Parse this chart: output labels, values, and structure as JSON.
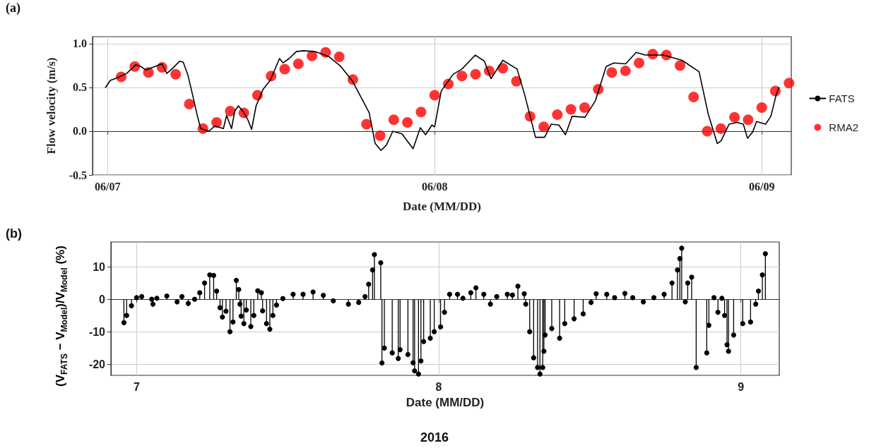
{
  "chart_data": [
    {
      "type": "line",
      "xlabel": "Date (MM/DD)",
      "ylabel": "Flow velocity (m/s)",
      "annotations": [
        "(a)"
      ],
      "xlim": [
        "2016-06-06T22:54",
        "2016-06-09T02:10"
      ],
      "xticks": [
        {
          "value": "2016-06-07",
          "label": "06/07"
        },
        {
          "value": "2016-06-08",
          "label": "06/08"
        },
        {
          "value": "2016-06-09",
          "label": "06/09"
        }
      ],
      "ylim": [
        -0.5,
        1.08
      ],
      "yticks": [
        {
          "value": -0.5,
          "label": "-0.5"
        },
        {
          "value": 0,
          "label": "0.0"
        },
        0.5,
        {
          "value": 1,
          "label": "1.0"
        }
      ],
      "grid": true,
      "legend": "right",
      "series": [
        {
          "name": "FATS",
          "type": "line",
          "color": "#000000",
          "marker": "none",
          "line_style": "solid",
          "x": [
            "2016-06-06T23:51",
            "2016-06-07T00:12",
            "2016-06-07T00:43",
            "2016-06-07T01:24",
            "2016-06-07T02:05",
            "2016-06-07T02:27",
            "2016-06-07T02:47",
            "2016-06-07T03:29",
            "2016-06-07T03:59",
            "2016-06-07T04:21",
            "2016-06-07T04:51",
            "2016-06-07T05:17",
            "2016-06-07T05:33",
            "2016-06-07T05:54",
            "2016-06-07T06:14",
            "2016-06-07T06:35",
            "2016-06-07T06:50",
            "2016-06-07T07:26",
            "2016-06-07T07:52",
            "2016-06-07T08:30",
            "2016-06-07T08:44",
            "2016-06-07T09:06",
            "2016-06-07T09:20",
            "2016-06-07T09:36",
            "2016-06-07T09:58",
            "2016-06-07T10:18",
            "2016-06-07T10:34",
            "2016-06-07T10:54",
            "2016-06-07T11:25",
            "2016-06-07T11:56",
            "2016-06-07T12:37",
            "2016-06-07T12:53",
            "2016-06-07T13:19",
            "2016-06-07T13:51",
            "2016-06-07T14:21",
            "2016-06-07T15:13",
            "2016-06-07T16:16",
            "2016-06-07T17:07",
            "2016-06-07T17:59",
            "2016-06-07T19:12",
            "2016-06-07T19:38",
            "2016-06-07T20:04",
            "2016-06-07T20:27",
            "2016-06-07T20:56",
            "2016-06-07T21:36",
            "2016-06-07T22:25",
            "2016-06-07T22:57",
            "2016-06-07T23:20",
            "2016-06-07T23:48",
            "2016-06-08T00:00",
            "2016-06-08T00:29",
            "2016-06-08T01:21",
            "2016-06-08T02:00",
            "2016-06-08T02:59",
            "2016-06-08T03:39",
            "2016-06-08T04:08",
            "2016-06-08T05:00",
            "2016-06-08T06:03",
            "2016-06-08T06:37",
            "2016-06-08T07:24",
            "2016-06-08T08:04",
            "2016-06-08T08:33",
            "2016-06-08T09:07",
            "2016-06-08T09:36",
            "2016-06-08T10:05",
            "2016-06-08T11:02",
            "2016-06-08T11:48",
            "2016-06-08T12:35",
            "2016-06-08T13:09",
            "2016-06-08T14:01",
            "2016-06-08T14:47",
            "2016-06-08T15:27",
            "2016-06-08T16:48",
            "2016-06-08T18:09",
            "2016-06-08T19:24",
            "2016-06-08T20:04",
            "2016-06-08T20:44",
            "2016-06-08T21:01",
            "2016-06-08T21:36",
            "2016-06-08T22:11",
            "2016-06-08T22:39",
            "2016-06-08T22:57",
            "2016-06-08T23:20",
            "2016-06-08T23:37",
            "2016-06-09T00:17",
            "2016-06-09T00:40",
            "2016-06-09T01:03",
            "2016-06-09T01:15"
          ],
          "values": [
            0.5,
            0.58,
            0.61,
            0.66,
            0.76,
            0.74,
            0.7,
            0.74,
            0.77,
            0.66,
            0.73,
            0.8,
            0.79,
            0.64,
            0.42,
            0.18,
            0.03,
            0.0,
            0.06,
            0.03,
            0.18,
            0.03,
            0.23,
            0.29,
            0.22,
            0.13,
            0.02,
            0.29,
            0.48,
            0.58,
            0.83,
            0.78,
            0.83,
            0.91,
            0.92,
            0.91,
            0.85,
            0.74,
            0.57,
            0.21,
            -0.14,
            -0.22,
            -0.16,
            0.0,
            -0.03,
            -0.2,
            0.04,
            -0.04,
            0.07,
            0.05,
            0.46,
            0.65,
            0.71,
            0.87,
            0.8,
            0.6,
            0.81,
            0.71,
            0.41,
            -0.07,
            -0.07,
            0.08,
            0.07,
            -0.04,
            0.17,
            0.16,
            0.35,
            0.74,
            0.78,
            0.77,
            0.9,
            0.87,
            0.87,
            0.81,
            0.68,
            0.2,
            -0.14,
            -0.11,
            0.08,
            0.1,
            0.08,
            -0.08,
            -0.01,
            0.11,
            0.08,
            0.17,
            0.41,
            0.5
          ]
        },
        {
          "name": "RMA2",
          "type": "scatter",
          "color": "#ff0000",
          "marker": "circle",
          "x": [
            "2016-06-07T01:00",
            "2016-06-07T02:00",
            "2016-06-07T03:00",
            "2016-06-07T04:00",
            "2016-06-07T05:00",
            "2016-06-07T06:00",
            "2016-06-07T07:00",
            "2016-06-07T08:00",
            "2016-06-07T09:00",
            "2016-06-07T10:00",
            "2016-06-07T11:00",
            "2016-06-07T12:00",
            "2016-06-07T13:00",
            "2016-06-07T14:00",
            "2016-06-07T15:00",
            "2016-06-07T16:00",
            "2016-06-07T17:00",
            "2016-06-07T18:00",
            "2016-06-07T19:00",
            "2016-06-07T20:00",
            "2016-06-07T21:00",
            "2016-06-07T22:00",
            "2016-06-07T23:00",
            "2016-06-08T00:00",
            "2016-06-08T01:00",
            "2016-06-08T02:00",
            "2016-06-08T03:00",
            "2016-06-08T04:00",
            "2016-06-08T05:00",
            "2016-06-08T06:00",
            "2016-06-08T07:00",
            "2016-06-08T08:00",
            "2016-06-08T09:00",
            "2016-06-08T10:00",
            "2016-06-08T11:00",
            "2016-06-08T12:00",
            "2016-06-08T13:00",
            "2016-06-08T14:00",
            "2016-06-08T15:00",
            "2016-06-08T16:00",
            "2016-06-08T17:00",
            "2016-06-08T18:00",
            "2016-06-08T19:00",
            "2016-06-08T20:00",
            "2016-06-08T21:00",
            "2016-06-08T22:00",
            "2016-06-08T23:00",
            "2016-06-09T00:00",
            "2016-06-09T01:00",
            "2016-06-09T02:00"
          ],
          "values": [
            0.62,
            0.74,
            0.67,
            0.73,
            0.65,
            0.31,
            0.03,
            0.1,
            0.23,
            0.21,
            0.41,
            0.63,
            0.71,
            0.77,
            0.86,
            0.9,
            0.85,
            0.59,
            0.08,
            -0.05,
            0.13,
            0.1,
            0.22,
            0.41,
            0.54,
            0.63,
            0.65,
            0.69,
            0.72,
            0.57,
            0.17,
            0.05,
            0.19,
            0.25,
            0.27,
            0.48,
            0.67,
            0.69,
            0.78,
            0.88,
            0.87,
            0.75,
            0.39,
            0.0,
            0.03,
            0.16,
            0.13,
            0.27,
            0.46,
            0.55
          ]
        }
      ]
    },
    {
      "type": "lollipop",
      "xlabel": "Date (MM/DD)",
      "ylabel": "(V$_{FATS}$ − V$_{Model}$)/V$_{Model}$ (%)",
      "annotations": [
        "(b)",
        "2016"
      ],
      "xlim": [
        6.915,
        9.127
      ],
      "xticks": [
        7,
        8,
        9
      ],
      "ylim": [
        -23.4,
        17.6
      ],
      "yticks": [
        -20,
        -10,
        0,
        10
      ],
      "grid": true,
      "legend": false,
      "marker": "circle",
      "series": [
        {
          "color": "#000000",
          "x": [
            6.958,
            6.967,
            6.983,
            7.0,
            7.017,
            7.05,
            7.054,
            7.067,
            7.1,
            7.134,
            7.15,
            7.171,
            7.192,
            7.209,
            7.225,
            7.242,
            7.255,
            7.265,
            7.276,
            7.284,
            7.296,
            7.309,
            7.319,
            7.33,
            7.338,
            7.342,
            7.346,
            7.355,
            7.363,
            7.378,
            7.388,
            7.401,
            7.413,
            7.417,
            7.43,
            7.441,
            7.451,
            7.463,
            7.484,
            7.518,
            7.551,
            7.584,
            7.618,
            7.651,
            7.701,
            7.735,
            7.756,
            7.768,
            7.781,
            7.787,
            7.808,
            7.812,
            7.82,
            7.846,
            7.866,
            7.872,
            7.898,
            7.915,
            7.92,
            7.933,
            7.941,
            7.95,
            7.972,
            7.985,
            8.006,
            8.019,
            8.036,
            8.062,
            8.08,
            8.106,
            8.123,
            8.149,
            8.171,
            8.192,
            8.227,
            8.244,
            8.262,
            8.283,
            8.288,
            8.301,
            8.314,
            8.327,
            8.335,
            8.344,
            8.348,
            8.352,
            8.374,
            8.4,
            8.417,
            8.448,
            8.478,
            8.504,
            8.521,
            8.556,
            8.582,
            8.616,
            8.642,
            8.677,
            8.712,
            8.746,
            8.772,
            8.79,
            8.798,
            8.804,
            8.816,
            8.824,
            8.837,
            8.852,
            8.887,
            8.894,
            8.911,
            8.924,
            8.937,
            8.946,
            8.954,
            8.959,
            8.976,
            9.006,
            9.032,
            9.049,
            9.058,
            9.071,
            9.081
          ],
          "values": [
            -7.2,
            -5,
            -2,
            0.5,
            0.8,
            0,
            -1.5,
            0.3,
            1.0,
            -0.8,
            0.8,
            -1.3,
            0,
            2,
            5,
            7.5,
            7.3,
            2.5,
            -2.6,
            -5.5,
            -3.7,
            -10,
            -7,
            5.8,
            3,
            -1.5,
            -5.2,
            -7.5,
            -3.3,
            -8.4,
            -5,
            2.6,
            2,
            -3.6,
            -7.5,
            -9.2,
            -5,
            -1.8,
            0.2,
            1.5,
            1.5,
            2.2,
            1.2,
            -0.5,
            -1.5,
            -1.0,
            0.8,
            4.6,
            9,
            13.7,
            11.2,
            -19.6,
            -15,
            -16.5,
            -18.2,
            -15.5,
            -17,
            -19.5,
            -22,
            -23,
            -19,
            -13,
            -12,
            -10,
            -8.5,
            -4,
            1.5,
            1.5,
            0.3,
            2,
            3.5,
            1.5,
            -1.5,
            0.8,
            1.5,
            1.3,
            4,
            1.7,
            -1.5,
            -10,
            -18,
            -21,
            -23,
            -21,
            -16,
            -11,
            -9,
            -12,
            -7.5,
            -6,
            -4.5,
            -1,
            1.7,
            1.5,
            0.5,
            1.8,
            0.5,
            -0.8,
            0.5,
            1.5,
            5,
            9,
            12.5,
            15.7,
            -0.8,
            5,
            6.8,
            -21,
            -16.5,
            -8,
            0.5,
            -4,
            0.3,
            -5,
            -14,
            -16,
            -11,
            -7.5,
            -7,
            -1.5,
            2.5,
            7.5,
            14
          ]
        }
      ]
    }
  ]
}
